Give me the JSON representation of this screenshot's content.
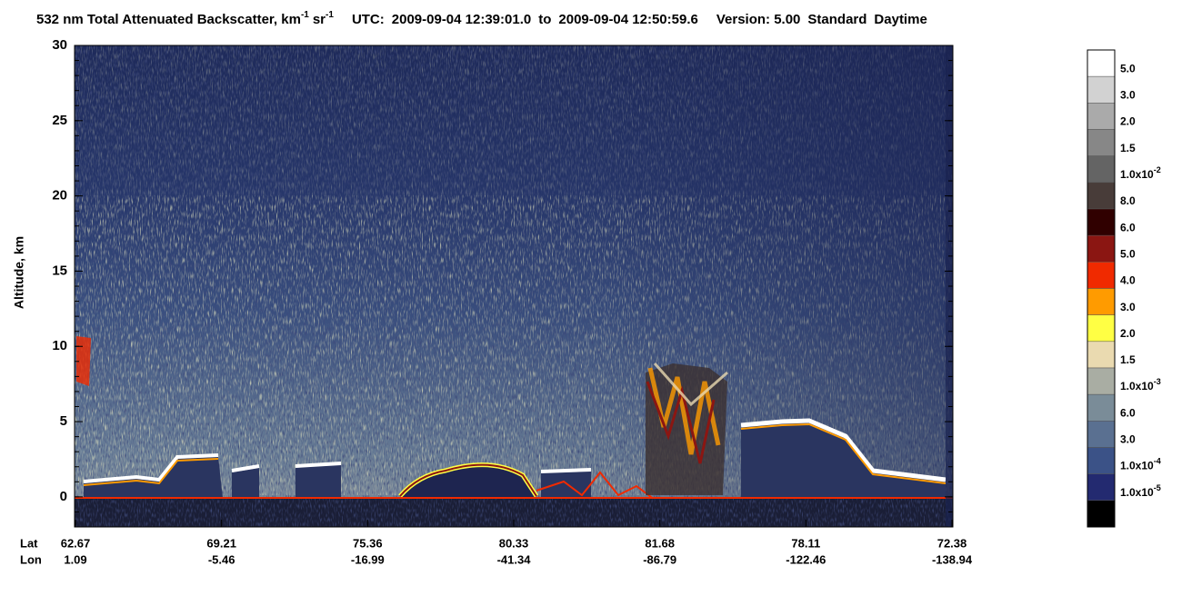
{
  "chart_data": {
    "type": "profile-image",
    "title": {
      "quantity": "532 nm Total Attenuated Backscatter, km",
      "exp_km": "-1",
      "unit_sr": "sr",
      "exp_sr": "-1",
      "utc_label": "UTC:",
      "utc_start": "2009-09-04 12:39:01.0",
      "to": "to",
      "utc_end": "2009-09-04 12:50:59.6",
      "version": "Version: 5.00",
      "product": "Standard",
      "daytime": "Daytime"
    },
    "ylabel": "Altitude, km",
    "ylim": [
      -2,
      30
    ],
    "yticks": [
      0,
      5,
      10,
      15,
      20,
      25,
      30
    ],
    "x_row_labels": [
      "Lat",
      "Lon"
    ],
    "lat": [
      "62.67",
      "69.21",
      "75.36",
      "80.33",
      "81.68",
      "78.11",
      "72.38"
    ],
    "lon": [
      "1.09",
      "-5.46",
      "-16.99",
      "-41.34",
      "-86.79",
      "-122.46",
      "-138.94"
    ],
    "colorbar": {
      "colors": [
        "#ffffff",
        "#d2d2d2",
        "#aaaaaa",
        "#878787",
        "#646464",
        "#483c39",
        "#300000",
        "#8b1612",
        "#f02a00",
        "#ff9b00",
        "#ffff44",
        "#eadab0",
        "#a9ada3",
        "#7a8c98",
        "#5a7091",
        "#3b5287",
        "#232a70",
        "#000000"
      ],
      "labels": [
        "5.0",
        "3.0",
        "2.0",
        "1.5",
        {
          "base": "1.0x10",
          "exp": "-2"
        },
        "8.0",
        "6.0",
        "5.0",
        "4.0",
        "3.0",
        "2.0",
        "1.5",
        {
          "base": "1.0x10",
          "exp": "-3"
        },
        "6.0",
        "3.0",
        {
          "base": "1.0x10",
          "exp": "-4"
        },
        {
          "base": "1.0x10",
          "exp": "-5"
        }
      ]
    }
  }
}
